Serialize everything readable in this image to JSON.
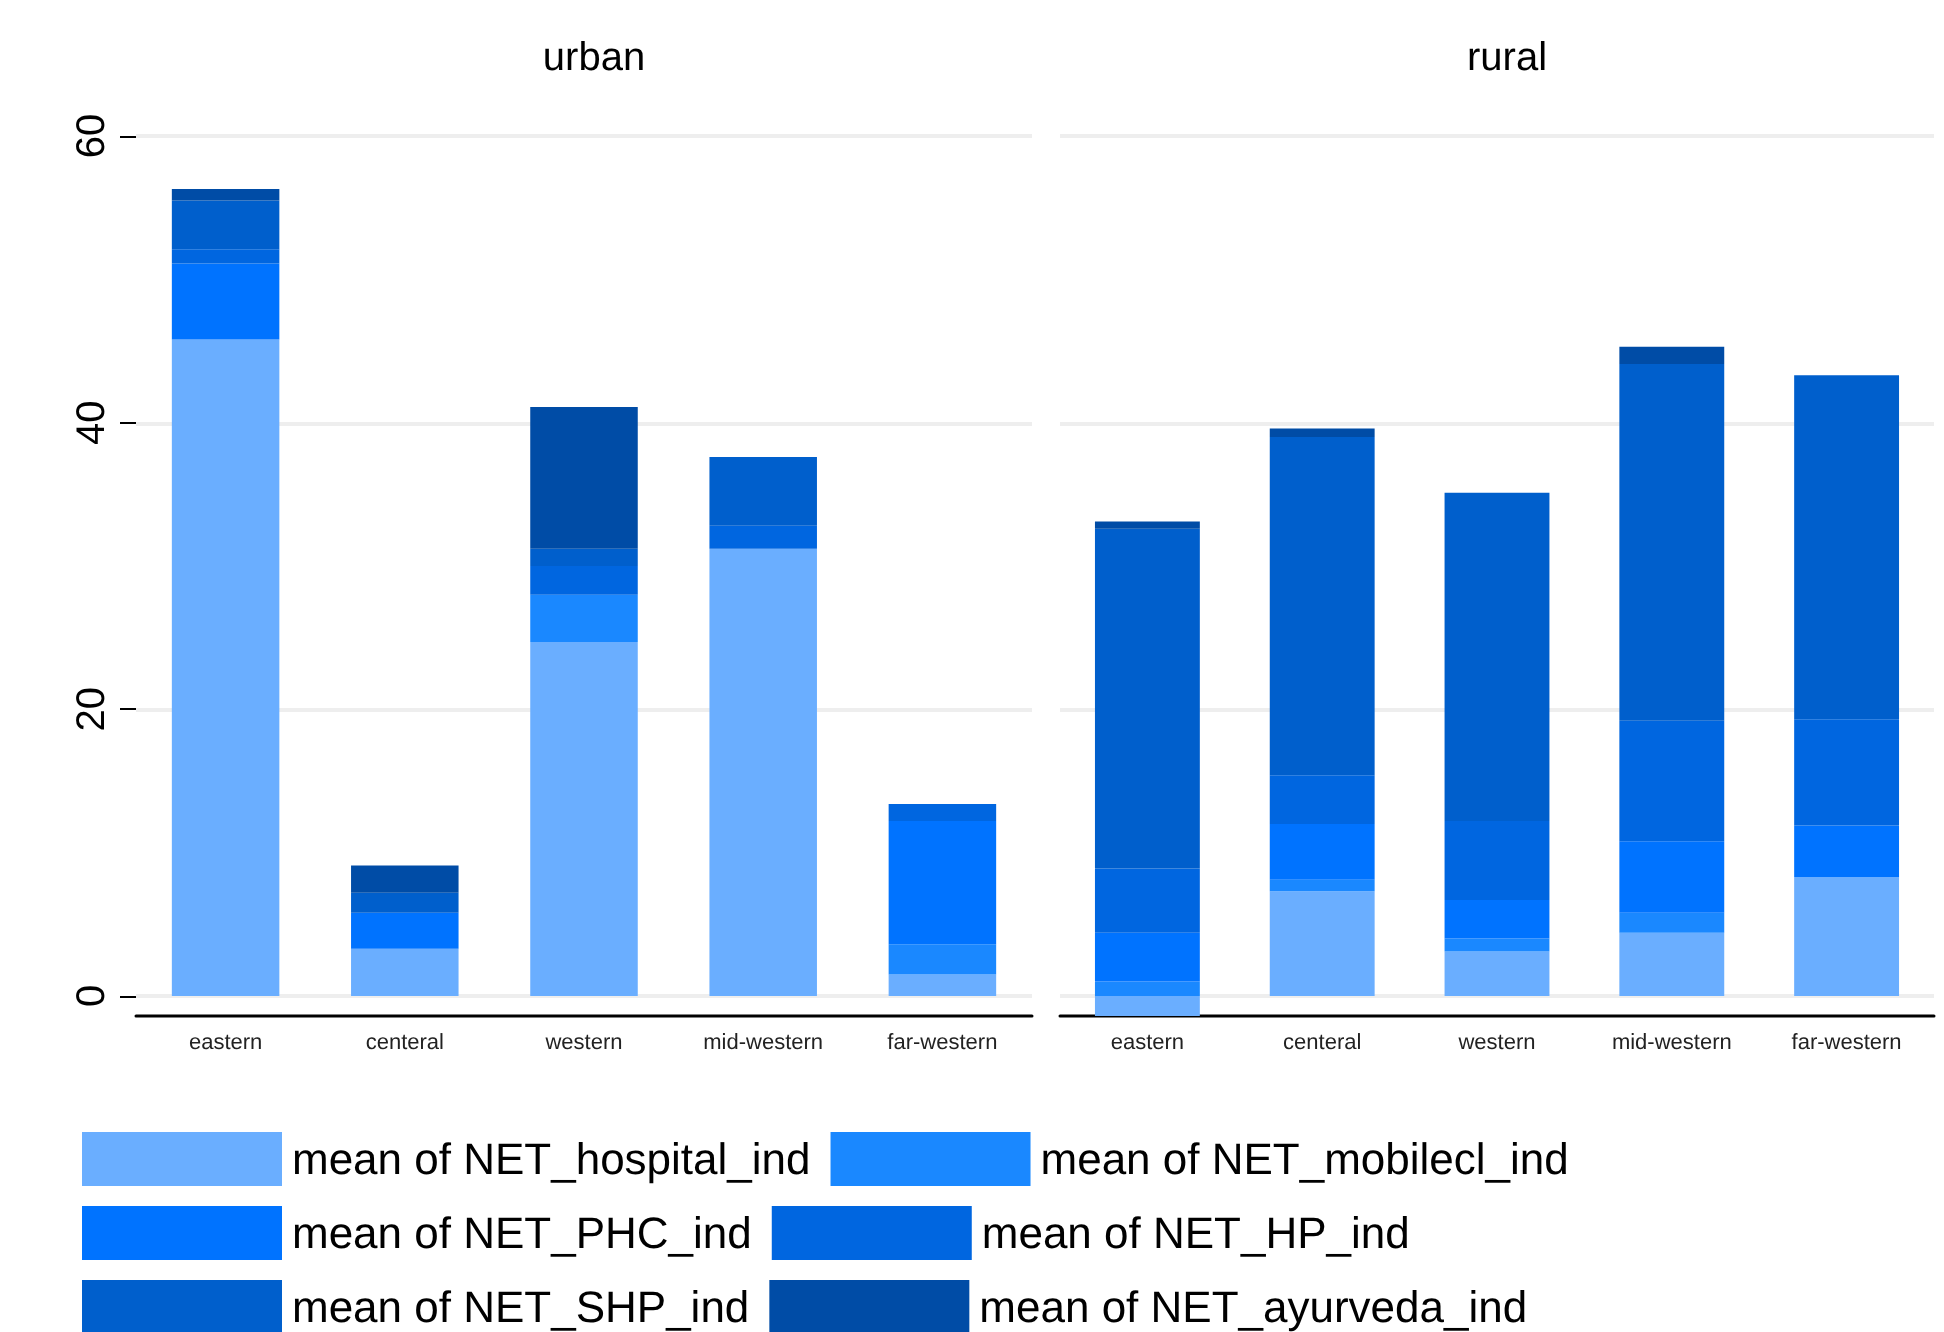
{
  "chart_data": [
    {
      "type": "bar",
      "title": "urban",
      "stacked": true,
      "categories": [
        "eastern",
        "centeral",
        "western",
        "mid-western",
        "far-western"
      ],
      "ylim": [
        -1.4,
        60
      ],
      "yticks": [
        0,
        20,
        40,
        60
      ],
      "grid": "y",
      "legend": "bottom",
      "series": [
        {
          "name": "mean of NET_hospital_ind",
          "color": "#6aaeff",
          "values": [
            45.8,
            3.3,
            24.7,
            31.2,
            1.5
          ]
        },
        {
          "name": "mean of NET_mobilecl_ind",
          "color": "#1a88ff",
          "values": [
            0,
            0,
            3.3,
            0,
            2.1
          ]
        },
        {
          "name": "mean of NET_PHC_ind",
          "color": "#0073ff",
          "values": [
            5.3,
            2.5,
            0,
            0,
            8.6
          ]
        },
        {
          "name": "mean of NET_HP_ind",
          "color": "#0066e0",
          "values": [
            1.0,
            0,
            2.0,
            1.6,
            1.2
          ]
        },
        {
          "name": "mean of NET_SHP_ind",
          "color": "#005fcc",
          "values": [
            3.4,
            1.4,
            1.2,
            4.8,
            0
          ]
        },
        {
          "name": "mean of NET_ayurveda_ind",
          "color": "#004ca6",
          "values": [
            0.8,
            1.9,
            9.9,
            0,
            0
          ]
        }
      ]
    },
    {
      "type": "bar",
      "title": "rural",
      "stacked": true,
      "categories": [
        "eastern",
        "centeral",
        "western",
        "mid-western",
        "far-western"
      ],
      "ylim": [
        -1.4,
        60
      ],
      "grid": "y",
      "tick_labels": "x",
      "series": [
        {
          "color": "#6aaeff",
          "values": [
            -1.4,
            7.3,
            3.1,
            4.4,
            8.3
          ]
        },
        {
          "color": "#1a88ff",
          "values": [
            1.0,
            0.8,
            0.9,
            1.4,
            0
          ]
        },
        {
          "color": "#0073ff",
          "values": [
            3.4,
            3.9,
            2.7,
            5.0,
            3.6
          ]
        },
        {
          "color": "#0066e0",
          "values": [
            4.5,
            3.4,
            5.5,
            8.4,
            7.4
          ]
        },
        {
          "color": "#005fcc",
          "values": [
            23.7,
            23.6,
            22.9,
            24.9,
            24.0
          ]
        },
        {
          "color": "#004ca6",
          "values": [
            0.5,
            0.6,
            0,
            1.2,
            0
          ]
        }
      ]
    }
  ]
}
